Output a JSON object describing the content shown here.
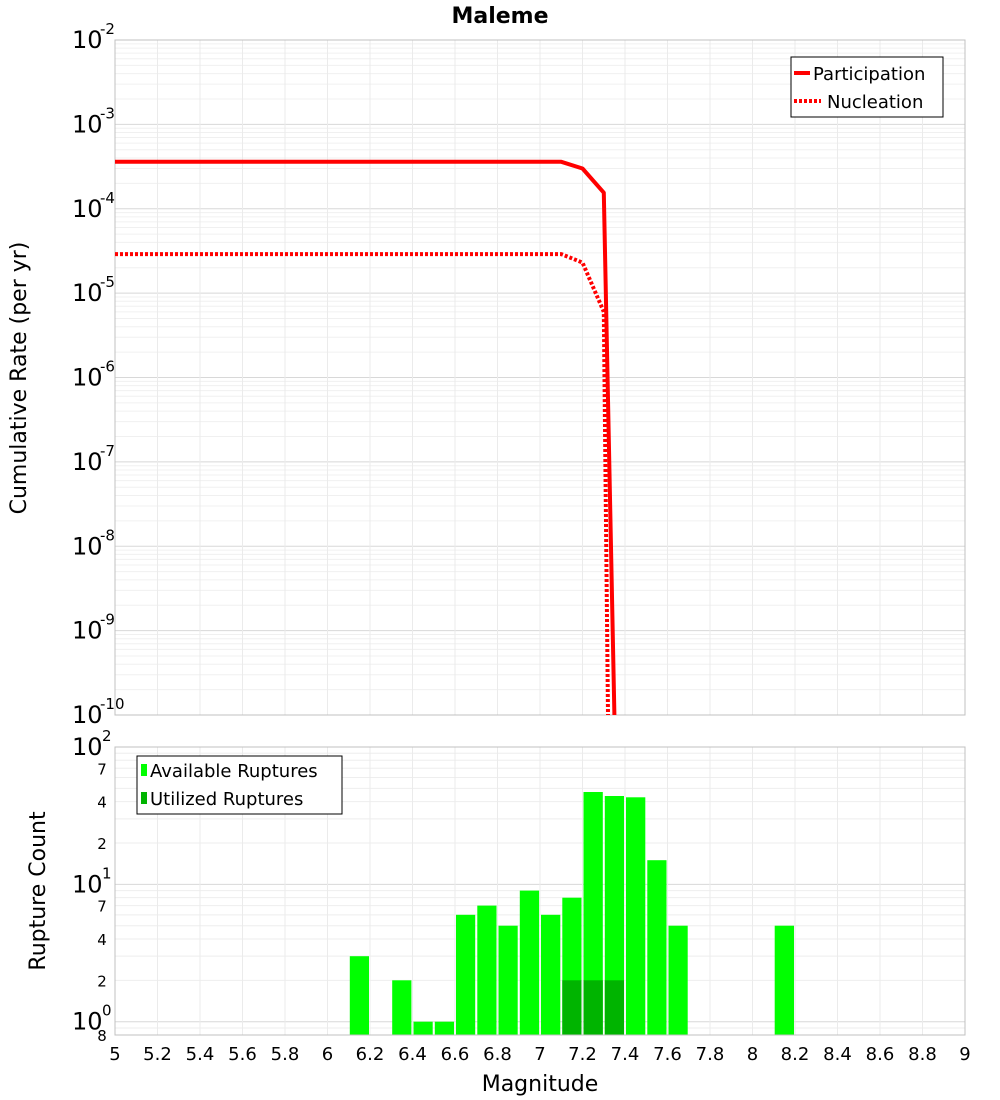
{
  "chart_data": [
    {
      "type": "line",
      "title": "Maleme",
      "xlabel": "Magnitude",
      "ylabel": "Cumulative Rate (per yr)",
      "xlim": [
        5,
        9
      ],
      "ylim_log10": [
        -10,
        -2
      ],
      "yscale": "log",
      "y_tick_labels": [
        {
          "base": "10",
          "exp": "-2"
        },
        {
          "base": "10",
          "exp": "-3"
        },
        {
          "base": "10",
          "exp": "-4"
        },
        {
          "base": "10",
          "exp": "-5"
        },
        {
          "base": "10",
          "exp": "-6"
        },
        {
          "base": "10",
          "exp": "-7"
        },
        {
          "base": "10",
          "exp": "-8"
        },
        {
          "base": "10",
          "exp": "-9"
        },
        {
          "base": "10",
          "exp": "-10"
        }
      ],
      "legend": [
        "Participation",
        "Nucleation"
      ],
      "legend_position": "top-right",
      "series": [
        {
          "name": "Participation",
          "style": "solid",
          "color": "#ff0000",
          "x": [
            5.0,
            7.1,
            7.2,
            7.3,
            7.35
          ],
          "y": [
            0.00036,
            0.00036,
            0.0003,
            0.000155,
            1e-10
          ]
        },
        {
          "name": "Nucleation",
          "style": "dotted",
          "color": "#ff0000",
          "x": [
            5.0,
            7.1,
            7.2,
            7.3,
            7.32
          ],
          "y": [
            2.9e-05,
            2.9e-05,
            2.3e-05,
            6e-06,
            1e-10
          ]
        }
      ]
    },
    {
      "type": "bar",
      "xlabel": "Magnitude",
      "ylabel": "Rupture Count",
      "xlim": [
        5,
        9
      ],
      "ylim": [
        0.8,
        100
      ],
      "yscale": "log",
      "x_ticks": [
        "5",
        "5.2",
        "5.4",
        "5.6",
        "5.8",
        "6",
        "6.2",
        "6.4",
        "6.6",
        "6.8",
        "7",
        "7.2",
        "7.4",
        "7.6",
        "7.8",
        "8",
        "8.2",
        "8.4",
        "8.6",
        "8.8",
        "9"
      ],
      "y_major_labels": [
        {
          "value": 100,
          "base": "10",
          "exp": "2"
        },
        {
          "value": 10,
          "base": "10",
          "exp": "1"
        },
        {
          "value": 1,
          "base": "10",
          "exp": "0"
        }
      ],
      "y_minor_labels": [
        {
          "value": 70,
          "label": "7"
        },
        {
          "value": 40,
          "label": "4"
        },
        {
          "value": 20,
          "label": "2"
        },
        {
          "value": 7,
          "label": "7"
        },
        {
          "value": 4,
          "label": "4"
        },
        {
          "value": 2,
          "label": "2"
        },
        {
          "value": 0.8,
          "label": "8"
        }
      ],
      "legend": [
        "Available Ruptures",
        "Utilized Ruptures"
      ],
      "legend_position": "top-left",
      "bin_width": 0.1,
      "series": [
        {
          "name": "Available Ruptures",
          "color": "#00ff00",
          "x": [
            6.15,
            6.35,
            6.45,
            6.55,
            6.65,
            6.75,
            6.85,
            6.95,
            7.05,
            7.15,
            7.25,
            7.35,
            7.45,
            7.55,
            7.65,
            8.15
          ],
          "values": [
            3,
            2,
            1,
            1,
            6,
            7,
            5,
            9,
            6,
            8,
            47,
            44,
            43,
            15,
            5,
            5
          ]
        },
        {
          "name": "Utilized Ruptures",
          "color": "#00b400",
          "x": [
            7.15,
            7.25,
            7.35
          ],
          "values": [
            2,
            2,
            2
          ]
        }
      ]
    }
  ]
}
